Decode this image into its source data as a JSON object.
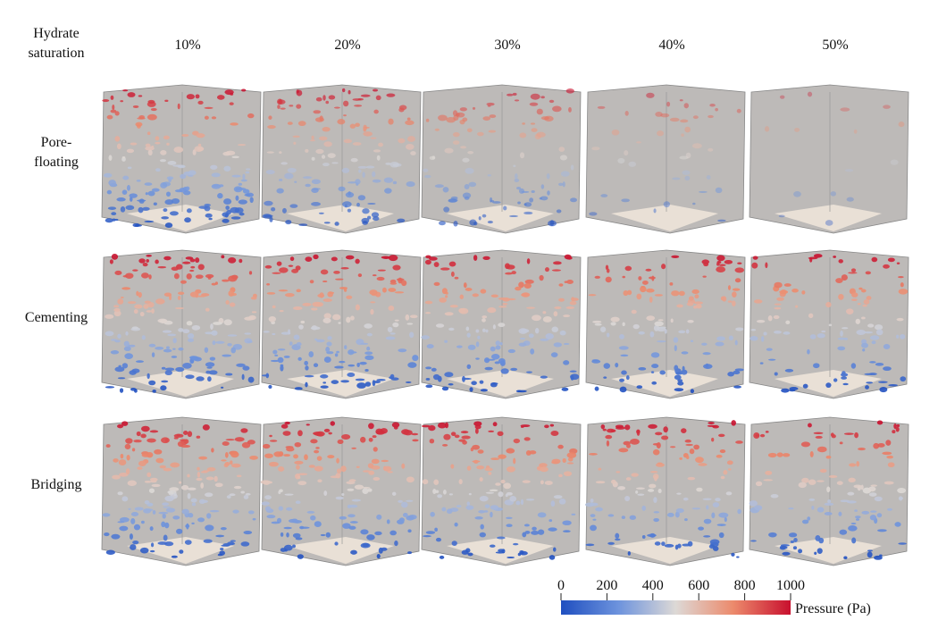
{
  "header": {
    "corner": [
      "Hydrate",
      "saturation"
    ],
    "columns": [
      "10%",
      "20%",
      "30%",
      "40%",
      "50%"
    ]
  },
  "rows": [
    [
      "Pore-",
      "floating"
    ],
    [
      "Cementing"
    ],
    [
      "Bridging"
    ]
  ],
  "colorbar": {
    "label": "Pressure (Pa)",
    "lim": [
      0,
      1000
    ],
    "ticks": [
      0,
      200,
      400,
      600,
      800,
      1000
    ]
  }
}
